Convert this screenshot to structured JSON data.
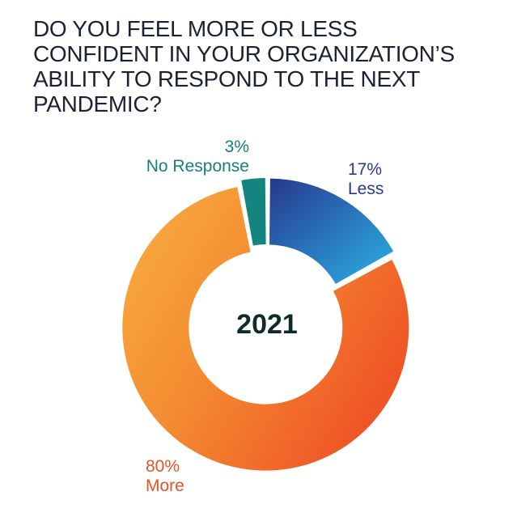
{
  "title_lines": [
    "DO YOU FEEL MORE OR LESS",
    "CONFIDENT IN YOUR ORGANIZATION’S",
    "ABILITY TO RESPOND TO THE NEXT",
    "PANDEMIC?"
  ],
  "center_label": "2021",
  "labels": {
    "no_response": {
      "pct": "3%",
      "name": "No Response",
      "color": "#177f7a"
    },
    "less": {
      "pct": "17%",
      "name": "Less",
      "color": "#2a3a8c"
    },
    "more": {
      "pct": "80%",
      "name": "More",
      "color": "#e0562a"
    }
  },
  "chart_data": {
    "type": "pie",
    "style": "donut",
    "title": "DO YOU FEEL MORE OR LESS CONFIDENT IN YOUR ORGANIZATION’S ABILITY TO RESPOND TO THE NEXT PANDEMIC?",
    "center_text": "2021",
    "categories": [
      "Less",
      "More",
      "No Response"
    ],
    "values": [
      17,
      80,
      3
    ],
    "unit": "%",
    "colors": [
      "#2a56a8",
      "#f07a2c",
      "#13857e"
    ]
  }
}
